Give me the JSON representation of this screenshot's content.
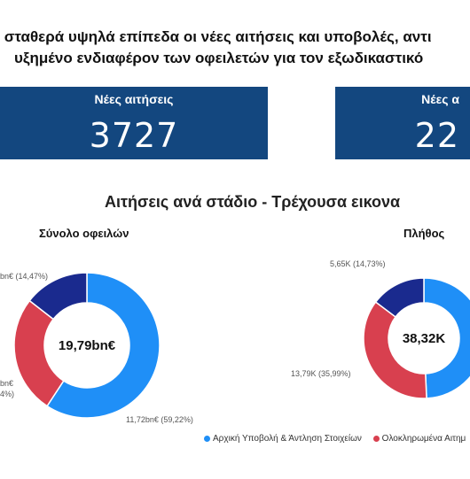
{
  "heading": {
    "line1": "ε σταθερά υψηλά επίπεδα οι νέες αιτήσεις και υποβολές, αντι",
    "line2": "υξημένο ενδιαφέρον των οφειλετών για τον εξωδικαστικό"
  },
  "kpis": [
    {
      "label": "Νέες αιτήσεις",
      "value": "3727"
    },
    {
      "label": "Νέες α",
      "value": "22"
    }
  ],
  "section_title": "Αιτήσεις ανά στάδιο - Τρέχουσα εικονα",
  "colors": {
    "blue": "#1f8ff7",
    "red": "#d8404f",
    "navy": "#1a2a8e",
    "kpi_bg": "#13477f"
  },
  "chart_data": [
    {
      "type": "pie",
      "title": "Σύνολο οφειλών",
      "center_label": "19,79bn€",
      "slices": [
        {
          "value": 59.22,
          "label": "11,72bn€ (59,22%)",
          "color": "#1f8ff7"
        },
        {
          "value": 26.31,
          "label": "bn€",
          "label2": "4%)",
          "color": "#d8404f"
        },
        {
          "value": 14.47,
          "label": "bn€ (14,47%)",
          "color": "#1a2a8e"
        }
      ]
    },
    {
      "type": "pie",
      "title": "Πλήθος",
      "center_label": "38,32K",
      "slices": [
        {
          "value": 49.28,
          "label": "",
          "color": "#1f8ff7"
        },
        {
          "value": 35.99,
          "label": "13,79K (35,99%)",
          "color": "#d8404f"
        },
        {
          "value": 14.73,
          "label": "5,65K (14,73%)",
          "color": "#1a2a8e"
        }
      ]
    }
  ],
  "legend": [
    {
      "label": "Αρχική Υποβολή & Άντληση Στοιχείων",
      "color": "#1f8ff7"
    },
    {
      "label": "Ολοκληρωμένα Αιτημ",
      "color": "#d8404f"
    }
  ]
}
